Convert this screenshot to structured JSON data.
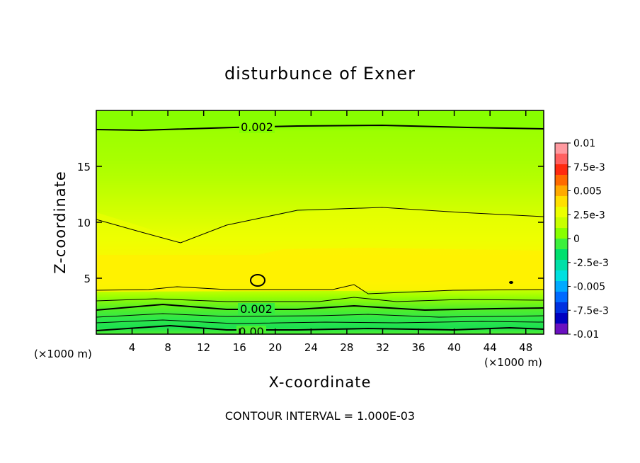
{
  "chart_data": {
    "type": "heatmap",
    "title": "disturbunce of Exner",
    "xlabel": "X-coordinate",
    "ylabel": "Z-coordinate",
    "x_unit": "(×1000 m)",
    "y_unit": "(×1000 m)",
    "xlim": [
      0,
      50
    ],
    "ylim": [
      0,
      20
    ],
    "xticks": [
      "4",
      "8",
      "12",
      "16",
      "20",
      "24",
      "28",
      "32",
      "36",
      "40",
      "44",
      "48"
    ],
    "yticks": [
      "5",
      "10",
      "15"
    ],
    "contour_interval_note": "CONTOUR INTERVAL = 1.000E-03",
    "contour_labels": [
      "0.002",
      "0.002",
      "0.00"
    ],
    "colorbar": {
      "labels": [
        "0.01",
        "7.5e-3",
        "0.005",
        "2.5e-3",
        "0",
        "-2.5e-3",
        "-0.005",
        "-7.5e-3",
        "-0.01"
      ],
      "colors": [
        "#ff9aa0",
        "#ff6060",
        "#ff2a10",
        "#ff6a00",
        "#ffaa00",
        "#ffe000",
        "#ecff00",
        "#c8ff00",
        "#88ff00",
        "#3cf03c",
        "#00e06e",
        "#00e0a8",
        "#00e0e0",
        "#00aaff",
        "#006aff",
        "#0030e0",
        "#0000c0",
        "#6a10c0"
      ]
    },
    "field_levels": [
      {
        "z": 0.5,
        "value": 0.0
      },
      {
        "z": 1.5,
        "value": 0.001
      },
      {
        "z": 2.5,
        "value": 0.002
      },
      {
        "z": 4.0,
        "value": 0.0035
      },
      {
        "z": 5.0,
        "value": 0.004
      },
      {
        "z": 7.0,
        "value": 0.0038
      },
      {
        "z": 10.0,
        "value": 0.0032
      },
      {
        "z": 13.0,
        "value": 0.0028
      },
      {
        "z": 16.0,
        "value": 0.0025
      },
      {
        "z": 19.0,
        "value": 0.002
      }
    ]
  }
}
